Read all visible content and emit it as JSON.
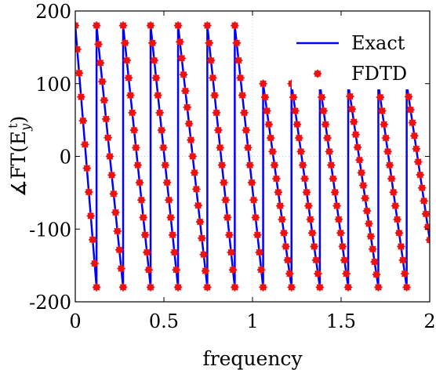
{
  "chart_data": {
    "type": "line",
    "title": "",
    "xlabel": "frequency",
    "ylabel": "∡FT(E",
    "ylabel_sub": "y",
    "ylabel_sup": "t",
    "ylabel_close": ")",
    "xlim": [
      0,
      2
    ],
    "ylim": [
      -200,
      200
    ],
    "xticks": [
      0,
      0.5,
      1,
      1.5,
      2
    ],
    "xtick_labels": [
      "0",
      "0.5",
      "1",
      "1.5",
      "2"
    ],
    "yticks": [
      -200,
      -100,
      0,
      100,
      200
    ],
    "ytick_labels": [
      "-200",
      "-100",
      "0",
      "100",
      "200"
    ],
    "grid": "dotted-zero-lines",
    "legend_position": "top-right",
    "series": [
      {
        "name": "Exact",
        "style": "line",
        "color": "#0000ff",
        "x": [
          0,
          0.12,
          0.12,
          0.27,
          0.27,
          0.425,
          0.425,
          0.58,
          0.58,
          0.745,
          0.745,
          0.9,
          0.9,
          1.06,
          1.06,
          1.22,
          1.22,
          1.38,
          1.38,
          1.54,
          1.54,
          1.71,
          1.71,
          1.87,
          1.87,
          2.0
        ],
        "y": [
          180,
          -180,
          180,
          -180,
          180,
          -180,
          180,
          -180,
          180,
          -180,
          180,
          -180,
          180,
          -180,
          100,
          -180,
          100,
          -180,
          100,
          -180,
          100,
          -180,
          100,
          -180,
          100,
          -115
        ]
      },
      {
        "name": "FDTD",
        "style": "markers",
        "color": "#ee1111",
        "x": [
          0,
          0.12,
          0.12,
          0.27,
          0.27,
          0.425,
          0.425,
          0.58,
          0.58,
          0.745,
          0.745,
          0.9,
          0.9,
          1.06,
          1.06,
          1.22,
          1.22,
          1.38,
          1.38,
          1.54,
          1.54,
          1.71,
          1.71,
          1.87,
          1.87,
          2.0
        ],
        "y": [
          180,
          -180,
          180,
          -180,
          180,
          -180,
          180,
          -180,
          180,
          -180,
          180,
          -180,
          180,
          -180,
          100,
          -180,
          100,
          -180,
          100,
          -180,
          100,
          -180,
          100,
          -180,
          100,
          -115
        ],
        "marker_spacing": 0.0105
      }
    ]
  }
}
